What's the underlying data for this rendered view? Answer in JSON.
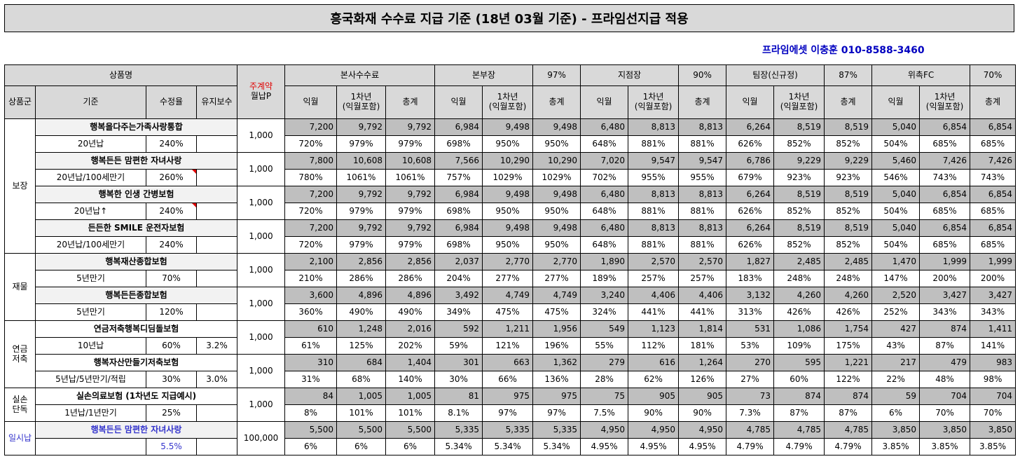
{
  "title": "흥국화재 수수료 지급 기준 (18년 03월 기준) - 프라임선지급 적용",
  "contact": "프라임에셋 이충훈 010-8588-3460",
  "header": {
    "product": "상품명",
    "weekly_line1": "주계약",
    "weekly_line2": "월납P",
    "group": "상품군",
    "basis": "기준",
    "fix_rate": "수정율",
    "maint": "유지보수",
    "hq": "본사수수료",
    "boss": "본부장",
    "boss_pct": "97%",
    "branch": "지점장",
    "branch_pct": "90%",
    "team": "팀장(신규정)",
    "team_pct": "87%",
    "fc": "위촉FC",
    "fc_pct": "70%",
    "sub_month": "익월",
    "sub_year1_line1": "1차년",
    "sub_year1_line2": "(익월포함)",
    "sub_total": "총계"
  },
  "groups": [
    {
      "name_lines": [
        "보장"
      ],
      "products": [
        {
          "name": "행복을다주는가족사랑통합",
          "basis": "20년납",
          "rate": "240%",
          "maint": "",
          "premium": "1,000",
          "marker": false,
          "amounts": [
            "7,200",
            "9,792",
            "9,792",
            "6,984",
            "9,498",
            "9,498",
            "6,480",
            "8,813",
            "8,813",
            "6,264",
            "8,519",
            "8,519",
            "5,040",
            "6,854",
            "6,854"
          ],
          "pcts": [
            "720%",
            "979%",
            "979%",
            "698%",
            "950%",
            "950%",
            "648%",
            "881%",
            "881%",
            "626%",
            "852%",
            "852%",
            "504%",
            "685%",
            "685%"
          ]
        },
        {
          "name": "행복든든 맘편한 자녀사랑",
          "basis": "20년납/100세만기",
          "rate": "260%",
          "maint": "",
          "premium": "1,000",
          "marker": true,
          "amounts": [
            "7,800",
            "10,608",
            "10,608",
            "7,566",
            "10,290",
            "10,290",
            "7,020",
            "9,547",
            "9,547",
            "6,786",
            "9,229",
            "9,229",
            "5,460",
            "7,426",
            "7,426"
          ],
          "pcts": [
            "780%",
            "1061%",
            "1061%",
            "757%",
            "1029%",
            "1029%",
            "702%",
            "955%",
            "955%",
            "679%",
            "923%",
            "923%",
            "546%",
            "743%",
            "743%"
          ]
        },
        {
          "name": "행복한 인생 간병보험",
          "basis": "20년납↑",
          "rate": "240%",
          "maint": "",
          "premium": "1,000",
          "marker": true,
          "amounts": [
            "7,200",
            "9,792",
            "9,792",
            "6,984",
            "9,498",
            "9,498",
            "6,480",
            "8,813",
            "8,813",
            "6,264",
            "8,519",
            "8,519",
            "5,040",
            "6,854",
            "6,854"
          ],
          "pcts": [
            "720%",
            "979%",
            "979%",
            "698%",
            "950%",
            "950%",
            "648%",
            "881%",
            "881%",
            "626%",
            "852%",
            "852%",
            "504%",
            "685%",
            "685%"
          ]
        },
        {
          "name": "든든한 SMILE 운전자보험",
          "basis": "20년납/100세만기",
          "rate": "240%",
          "maint": "",
          "premium": "1,000",
          "marker": false,
          "amounts": [
            "7,200",
            "9,792",
            "9,792",
            "6,984",
            "9,498",
            "9,498",
            "6,480",
            "8,813",
            "8,813",
            "6,264",
            "8,519",
            "8,519",
            "5,040",
            "6,854",
            "6,854"
          ],
          "pcts": [
            "720%",
            "979%",
            "979%",
            "698%",
            "950%",
            "950%",
            "648%",
            "881%",
            "881%",
            "626%",
            "852%",
            "852%",
            "504%",
            "685%",
            "685%"
          ]
        }
      ]
    },
    {
      "name_lines": [
        "재물"
      ],
      "products": [
        {
          "name": "행복재산종합보험",
          "basis": "5년만기",
          "rate": "70%",
          "maint": "",
          "premium": "1,000",
          "marker": false,
          "amounts": [
            "2,100",
            "2,856",
            "2,856",
            "2,037",
            "2,770",
            "2,770",
            "1,890",
            "2,570",
            "2,570",
            "1,827",
            "2,485",
            "2,485",
            "1,470",
            "1,999",
            "1,999"
          ],
          "pcts": [
            "210%",
            "286%",
            "286%",
            "204%",
            "277%",
            "277%",
            "189%",
            "257%",
            "257%",
            "183%",
            "248%",
            "248%",
            "147%",
            "200%",
            "200%"
          ]
        },
        {
          "name": "행복든든종합보험",
          "basis": "5년만기",
          "rate": "120%",
          "maint": "",
          "premium": "1,000",
          "marker": false,
          "amounts": [
            "3,600",
            "4,896",
            "4,896",
            "3,492",
            "4,749",
            "4,749",
            "3,240",
            "4,406",
            "4,406",
            "3,132",
            "4,260",
            "4,260",
            "2,520",
            "3,427",
            "3,427"
          ],
          "pcts": [
            "360%",
            "490%",
            "490%",
            "349%",
            "475%",
            "475%",
            "324%",
            "441%",
            "441%",
            "313%",
            "426%",
            "426%",
            "252%",
            "343%",
            "343%"
          ]
        }
      ]
    },
    {
      "name_lines": [
        "연금",
        "저축"
      ],
      "products": [
        {
          "name": "연금저축행복디딤돌보험",
          "basis": "10년납",
          "rate": "60%",
          "maint": "3.2%",
          "premium": "1,000",
          "marker": false,
          "amounts": [
            "610",
            "1,248",
            "2,016",
            "592",
            "1,211",
            "1,956",
            "549",
            "1,123",
            "1,814",
            "531",
            "1,086",
            "1,754",
            "427",
            "874",
            "1,411"
          ],
          "pcts": [
            "61%",
            "125%",
            "202%",
            "59%",
            "121%",
            "196%",
            "55%",
            "112%",
            "181%",
            "53%",
            "109%",
            "175%",
            "43%",
            "87%",
            "141%"
          ]
        },
        {
          "name": "행복자산만들기저축보험",
          "basis": "5년납/5년만기/적립",
          "rate": "30%",
          "maint": "3.0%",
          "premium": "1,000",
          "marker": false,
          "amounts": [
            "310",
            "684",
            "1,404",
            "301",
            "663",
            "1,362",
            "279",
            "616",
            "1,264",
            "270",
            "595",
            "1,221",
            "217",
            "479",
            "983"
          ],
          "pcts": [
            "31%",
            "68%",
            "140%",
            "30%",
            "66%",
            "136%",
            "28%",
            "62%",
            "126%",
            "27%",
            "60%",
            "122%",
            "22%",
            "48%",
            "98%"
          ]
        }
      ]
    },
    {
      "name_lines": [
        "실손",
        "단독"
      ],
      "products": [
        {
          "name": "실손의료보험 (1차년도 지급예시)",
          "basis": "1년납/1년만기",
          "rate": "25%",
          "maint": "",
          "premium": "1,000",
          "marker": false,
          "amounts": [
            "84",
            "1,005",
            "1,005",
            "81",
            "975",
            "975",
            "75",
            "905",
            "905",
            "73",
            "874",
            "874",
            "59",
            "704",
            "704"
          ],
          "pcts": [
            "8%",
            "101%",
            "101%",
            "8.1%",
            "97%",
            "97%",
            "7.5%",
            "90%",
            "90%",
            "7.3%",
            "87%",
            "87%",
            "6%",
            "70%",
            "70%"
          ]
        }
      ]
    },
    {
      "name_lines": [
        "일시납"
      ],
      "blue": true,
      "products": [
        {
          "name": "행복든든 맘편한 자녀사랑",
          "basis": "",
          "rate": "5.5%",
          "maint": "",
          "premium": "100,000",
          "marker": false,
          "amounts": [
            "5,500",
            "5,500",
            "5,500",
            "5,335",
            "5,335",
            "5,335",
            "4,950",
            "4,950",
            "4,950",
            "4,785",
            "4,785",
            "4,785",
            "3,850",
            "3,850",
            "3,850"
          ],
          "pcts": [
            "6%",
            "6%",
            "6%",
            "5.34%",
            "5.34%",
            "5.34%",
            "4.95%",
            "4.95%",
            "4.95%",
            "4.79%",
            "4.79%",
            "4.79%",
            "3.85%",
            "3.85%",
            "3.85%"
          ]
        }
      ]
    }
  ]
}
